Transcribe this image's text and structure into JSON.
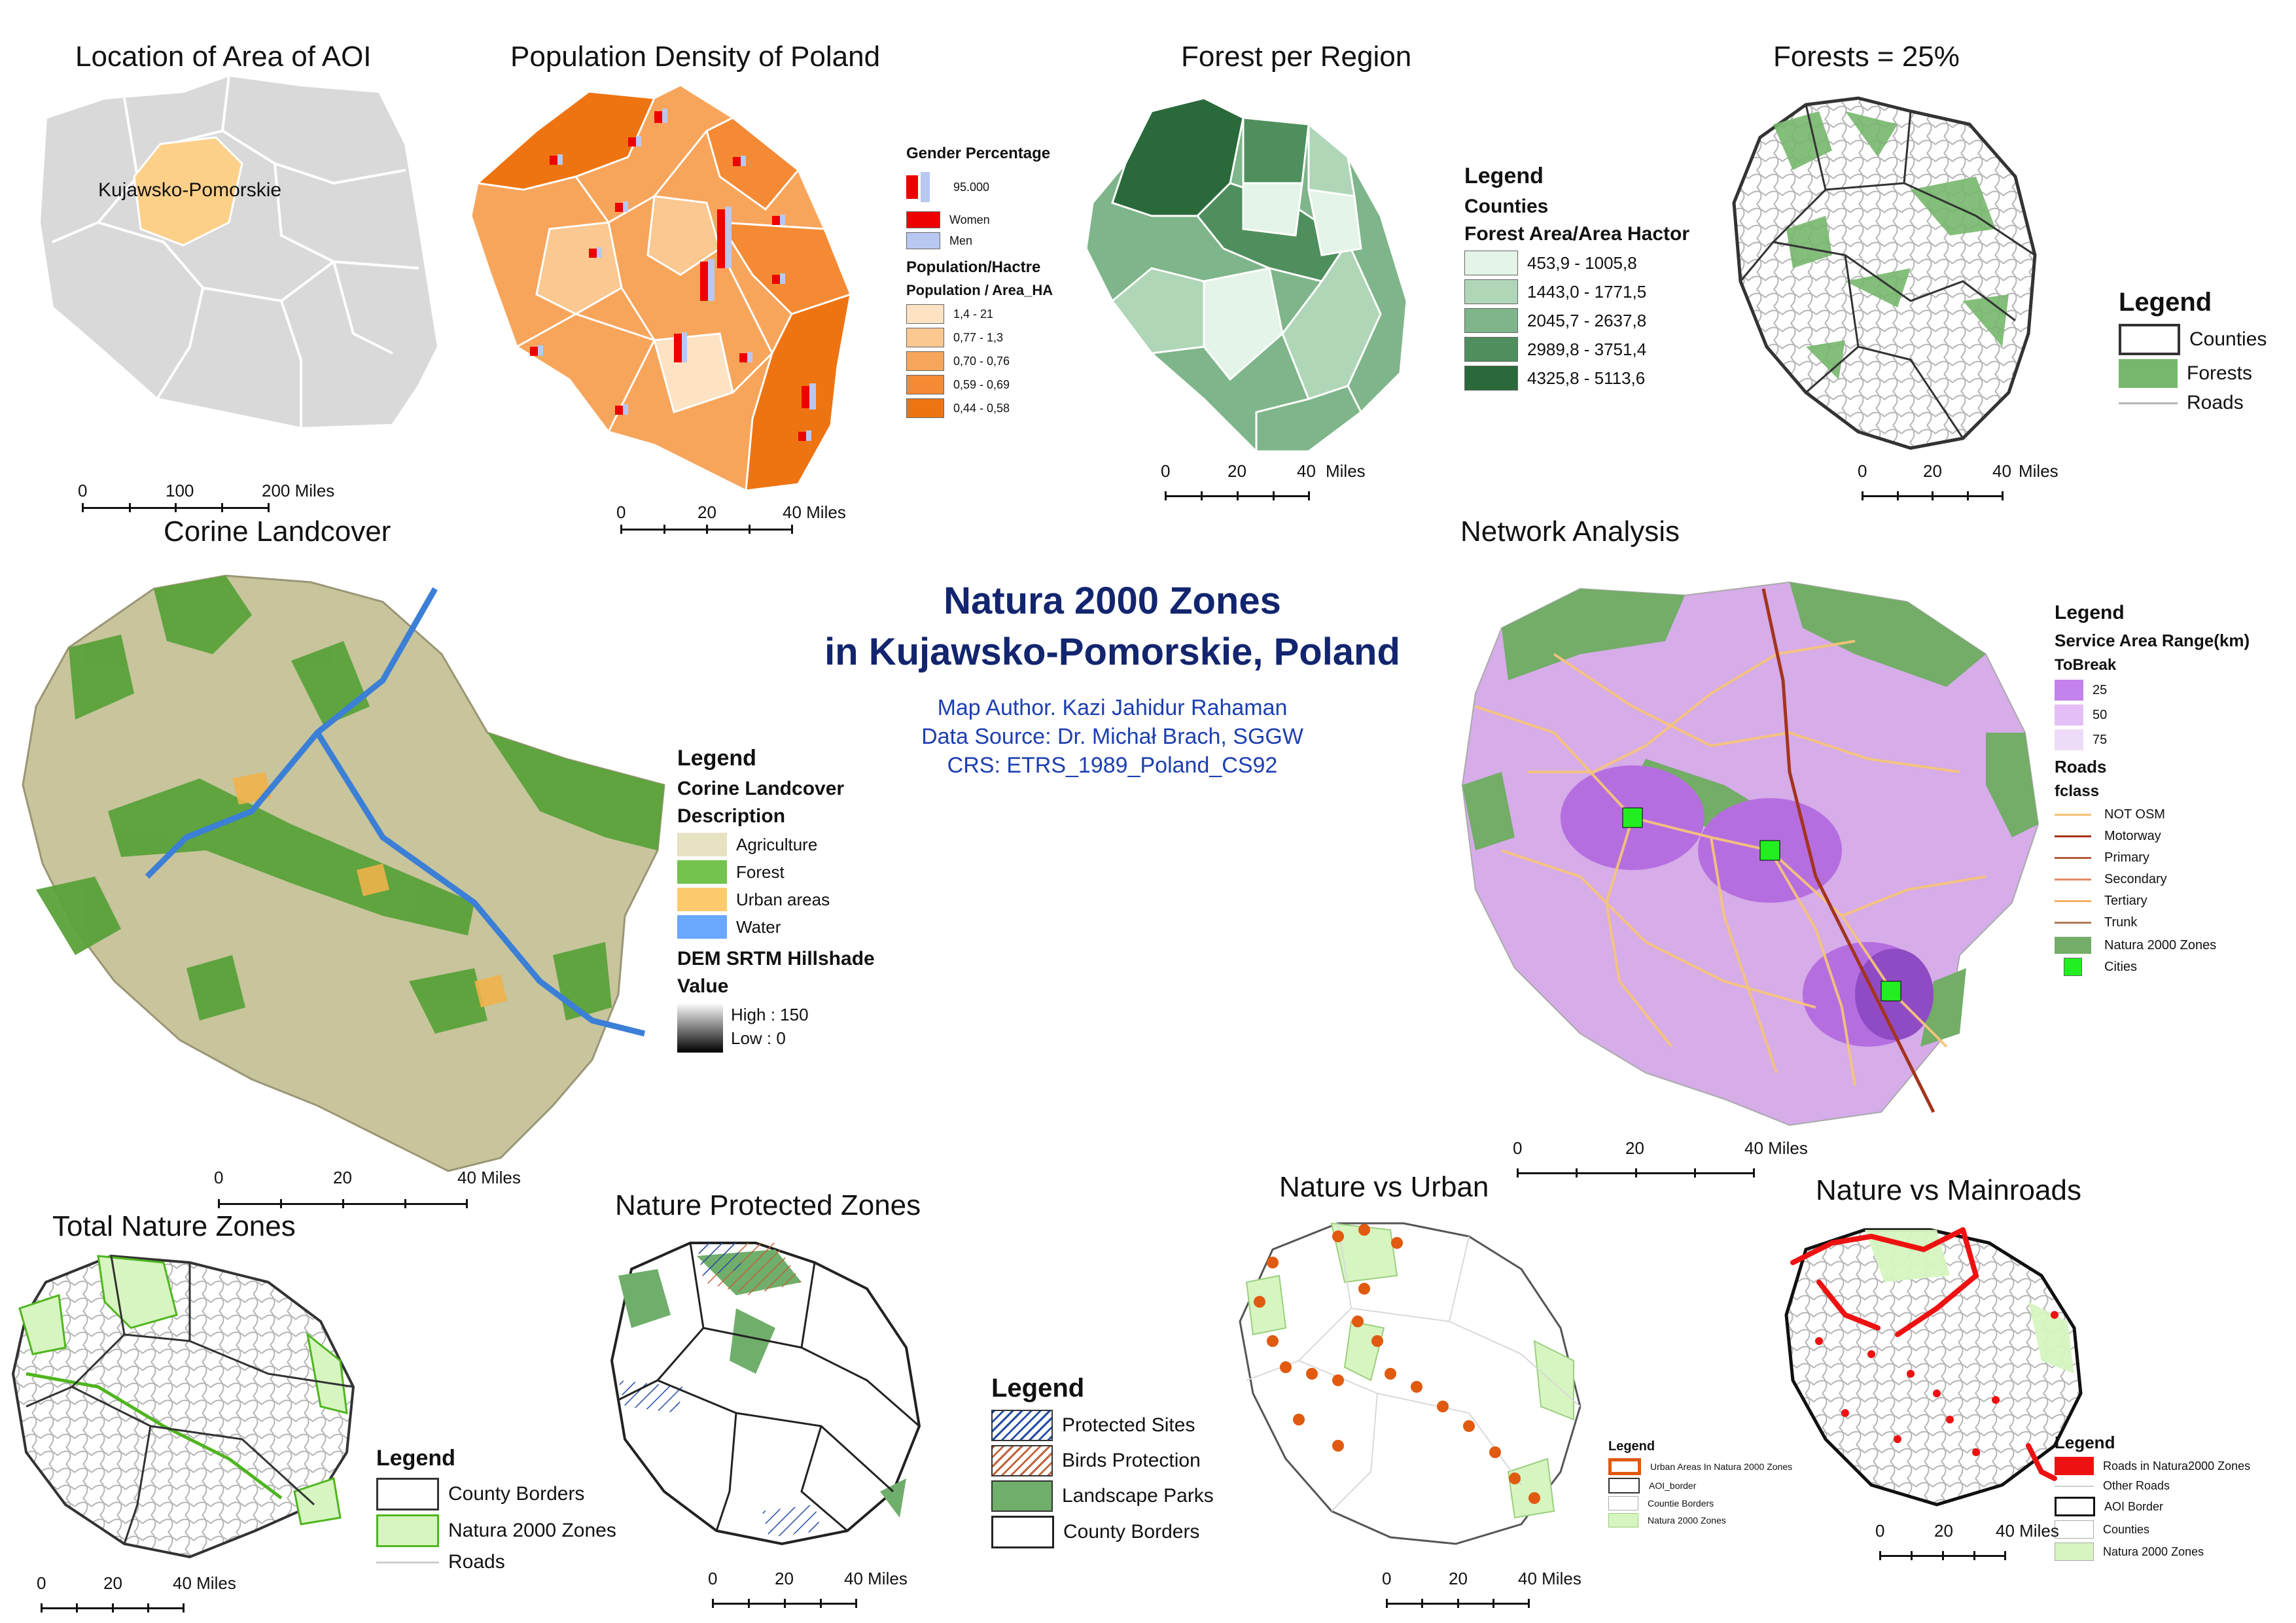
{
  "main": {
    "title_line1": "Natura 2000 Zones",
    "title_line2": "in Kujawsko-Pomorskie, Poland",
    "author": "Map Author. Kazi Jahidur Rahaman",
    "source": "Data Source: Dr. Michał Brach, SGGW",
    "crs": "CRS: ETRS_1989_Poland_CS92"
  },
  "panels": {
    "aoi": {
      "title": "Location of Area of AOI",
      "label": "Kujawsko-Pomorskie",
      "scale": [
        "0",
        "100",
        "200 Miles"
      ]
    },
    "density": {
      "title": "Population Density of Poland",
      "scale": [
        "0",
        "20",
        "40 Miles"
      ],
      "legend": {
        "gender_title": "Gender Percentage",
        "gender_value": "95.000",
        "women": "Women",
        "men": "Men",
        "pop_title": "Population/Hactre",
        "pop_sub": "Population / Area_HA",
        "classes": [
          "1,4 - 21",
          "0,77 - 1,3",
          "0,70 - 0,76",
          "0,59 - 0,69",
          "0,44 - 0,58"
        ],
        "colors": [
          "#fde3c3",
          "#fbc891",
          "#f8a55c",
          "#f48a33",
          "#ee7411"
        ]
      }
    },
    "forest_region": {
      "title": "Forest per Region",
      "scale": [
        "0",
        "20",
        "40",
        "Miles"
      ],
      "legend": {
        "heading": "Legend",
        "sub1": "Counties",
        "sub2": "Forest Area/Area Hactor",
        "classes": [
          "453,9 - 1005,8",
          "1443,0 - 1771,5",
          "2045,7 - 2637,8",
          "2989,8 - 3751,4",
          "4325,8 - 5113,6"
        ],
        "colors": [
          "#e4f4e8",
          "#b0d6b8",
          "#7fb58a",
          "#4f8f5d",
          "#2a6a3a"
        ]
      }
    },
    "forests25": {
      "title": "Forests = 25%",
      "scale": [
        "0",
        "20",
        "40",
        "Miles"
      ],
      "legend": {
        "heading": "Legend",
        "items": [
          "Counties",
          "Forests",
          "Roads"
        ]
      }
    },
    "corine": {
      "title": "Corine Landcover",
      "scale": [
        "0",
        "20",
        "40 Miles"
      ],
      "legend": {
        "heading": "Legend",
        "sub1": "Corine Landcover",
        "sub2": "Description",
        "items": [
          "Agriculture",
          "Forest",
          "Urban areas",
          "Water"
        ],
        "colors": [
          "#e6e2c2",
          "#74c34f",
          "#fdcb6e",
          "#6aa7ff"
        ],
        "dem_title": "DEM SRTM Hillshade",
        "value_title": "Value",
        "high": "High : 150",
        "low": "Low : 0"
      }
    },
    "network": {
      "title": "Network Analysis",
      "scale": [
        "0",
        "20",
        "40 Miles"
      ],
      "legend": {
        "heading": "Legend",
        "service_title": "Service Area Range(km)",
        "tobreak": "ToBreak",
        "breaks": [
          "25",
          "50",
          "75"
        ],
        "break_colors": [
          "#c482ec",
          "#e3bef7",
          "#eddcf7"
        ],
        "roads_title": "Roads",
        "fclass": "fclass",
        "roads": [
          "NOT OSM",
          "Motorway",
          "Primary",
          "Secondary",
          "Tertiary",
          "Trunk"
        ],
        "road_colors": [
          "#f7c277",
          "#a3341d",
          "#b05a37",
          "#e28a66",
          "#f4b061",
          "#b07a5a"
        ],
        "natura": "Natura 2000 Zones",
        "cities": "Cities"
      }
    },
    "total_nature": {
      "title": "Total Nature Zones",
      "scale": [
        "0",
        "20",
        "40 Miles"
      ],
      "legend": {
        "heading": "Legend",
        "items": [
          "County Borders",
          "Natura 2000 Zones",
          "Roads"
        ]
      }
    },
    "protected": {
      "title": "Nature Protected Zones",
      "scale": [
        "0",
        "20",
        "40 Miles"
      ],
      "legend": {
        "heading": "Legend",
        "items": [
          "Protected Sites",
          "Birds Protection",
          "Landscape Parks",
          "County Borders"
        ]
      }
    },
    "nature_urban": {
      "title": "Nature vs Urban",
      "scale": [
        "0",
        "20",
        "40 Miles"
      ],
      "legend": {
        "heading": "Legend",
        "items": [
          "Urban Areas In Natura 2000 Zones",
          "AOI_border",
          "Countie Borders",
          "Natura 2000 Zones"
        ]
      }
    },
    "nature_roads": {
      "title": "Nature vs Mainroads",
      "scale": [
        "0",
        "20",
        "40 Miles"
      ],
      "legend": {
        "heading": "Legend",
        "items": [
          "Roads in Natura2000 Zones",
          "Other Roads",
          "AOI Border",
          "Counties",
          "Natura 2000 Zones"
        ]
      }
    }
  }
}
